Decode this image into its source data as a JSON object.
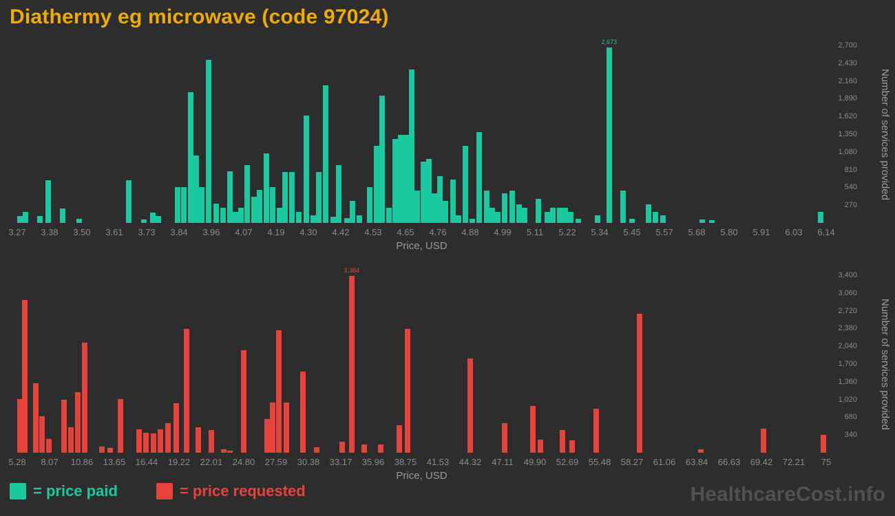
{
  "title": "Diathermy eg microwave (code 97024)",
  "watermark": "HealthcareCost.info",
  "legend": {
    "paid": "= price paid",
    "requested": "= price requested"
  },
  "colors": {
    "background": "#2D2D2D",
    "title": "#F0AB00",
    "paid": "#1BC9A0",
    "requested": "#E8423D",
    "tick_text": "#8B8B8B",
    "watermark": "#515151"
  },
  "chart_data": [
    {
      "type": "bar",
      "name": "price-paid",
      "series_label": "price paid",
      "color_key": "paid",
      "xlabel": "Price, USD",
      "ylabel": "Number of services provided",
      "x_range": [
        3.27,
        6.14
      ],
      "x_ticks": [
        "3.27",
        "3.38",
        "3.50",
        "3.61",
        "3.73",
        "3.84",
        "3.96",
        "4.07",
        "4.19",
        "4.30",
        "4.42",
        "4.53",
        "4.65",
        "4.76",
        "4.88",
        "4.99",
        "5.11",
        "5.22",
        "5.34",
        "5.45",
        "5.57",
        "5.68",
        "5.80",
        "5.91",
        "6.03",
        "6.14"
      ],
      "y_max": 2700,
      "y_ticks": [
        270,
        540,
        810,
        1080,
        1350,
        1620,
        1890,
        2160,
        2430,
        2700
      ],
      "peak_label": "2,673",
      "bars": [
        [
          3.275,
          110
        ],
        [
          3.3,
          165
        ],
        [
          3.35,
          110
        ],
        [
          3.38,
          650
        ],
        [
          3.43,
          215
        ],
        [
          3.49,
          65
        ],
        [
          3.665,
          650
        ],
        [
          3.72,
          55
        ],
        [
          3.75,
          160
        ],
        [
          3.77,
          110
        ],
        [
          3.84,
          540
        ],
        [
          3.86,
          540
        ],
        [
          3.885,
          1990
        ],
        [
          3.905,
          1030
        ],
        [
          3.925,
          540
        ],
        [
          3.95,
          2480
        ],
        [
          3.975,
          290
        ],
        [
          4.0,
          230
        ],
        [
          4.025,
          790
        ],
        [
          4.045,
          170
        ],
        [
          4.065,
          230
        ],
        [
          4.085,
          880
        ],
        [
          4.11,
          395
        ],
        [
          4.13,
          500
        ],
        [
          4.155,
          1060
        ],
        [
          4.175,
          540
        ],
        [
          4.2,
          230
        ],
        [
          4.22,
          770
        ],
        [
          4.245,
          770
        ],
        [
          4.27,
          170
        ],
        [
          4.295,
          1630
        ],
        [
          4.32,
          120
        ],
        [
          4.34,
          770
        ],
        [
          4.365,
          2090
        ],
        [
          4.39,
          90
        ],
        [
          4.41,
          880
        ],
        [
          4.44,
          70
        ],
        [
          4.46,
          330
        ],
        [
          4.485,
          120
        ],
        [
          4.52,
          540
        ],
        [
          4.545,
          1170
        ],
        [
          4.565,
          1940
        ],
        [
          4.59,
          230
        ],
        [
          4.61,
          1280
        ],
        [
          4.63,
          1340
        ],
        [
          4.65,
          1340
        ],
        [
          4.67,
          2330
        ],
        [
          4.69,
          490
        ],
        [
          4.71,
          930
        ],
        [
          4.73,
          970
        ],
        [
          4.75,
          445
        ],
        [
          4.77,
          715
        ],
        [
          4.79,
          330
        ],
        [
          4.815,
          655
        ],
        [
          4.835,
          120
        ],
        [
          4.86,
          1170
        ],
        [
          4.885,
          60
        ],
        [
          4.91,
          1380
        ],
        [
          4.935,
          490
        ],
        [
          4.955,
          230
        ],
        [
          4.975,
          170
        ],
        [
          5.0,
          445
        ],
        [
          5.025,
          490
        ],
        [
          5.05,
          285
        ],
        [
          5.07,
          230
        ],
        [
          5.12,
          365
        ],
        [
          5.15,
          170
        ],
        [
          5.17,
          230
        ],
        [
          5.195,
          230
        ],
        [
          5.215,
          230
        ],
        [
          5.235,
          170
        ],
        [
          5.26,
          60
        ],
        [
          5.33,
          120
        ],
        [
          5.37,
          2673
        ],
        [
          5.42,
          495
        ],
        [
          5.45,
          60
        ],
        [
          5.51,
          285
        ],
        [
          5.535,
          170
        ],
        [
          5.56,
          120
        ],
        [
          5.7,
          50
        ],
        [
          5.735,
          40
        ],
        [
          6.12,
          170
        ]
      ]
    },
    {
      "type": "bar",
      "name": "price-requested",
      "series_label": "price requested",
      "color_key": "requested",
      "xlabel": "Price, USD",
      "ylabel": "Number of services provided",
      "x_range": [
        5.28,
        75
      ],
      "x_ticks": [
        "5.28",
        "8.07",
        "10.86",
        "13.65",
        "16.44",
        "19.22",
        "22.01",
        "24.80",
        "27.59",
        "30.38",
        "33.17",
        "35.96",
        "38.75",
        "41.53",
        "44.32",
        "47.11",
        "49.90",
        "52.69",
        "55.48",
        "58.27",
        "61.06",
        "63.84",
        "66.63",
        "69.42",
        "72.21",
        "75"
      ],
      "y_max": 3400,
      "y_ticks": [
        340,
        680,
        1020,
        1360,
        1700,
        2040,
        2380,
        2720,
        3060,
        3400
      ],
      "peak_label": "3,384",
      "bars": [
        [
          5.4,
          1030
        ],
        [
          5.95,
          2920
        ],
        [
          6.9,
          1330
        ],
        [
          7.4,
          705
        ],
        [
          8.0,
          265
        ],
        [
          9.3,
          1010
        ],
        [
          9.9,
          485
        ],
        [
          10.5,
          1160
        ],
        [
          11.1,
          2110
        ],
        [
          12.6,
          125
        ],
        [
          13.3,
          90
        ],
        [
          14.2,
          1030
        ],
        [
          15.8,
          445
        ],
        [
          16.4,
          385
        ],
        [
          17.0,
          365
        ],
        [
          17.6,
          445
        ],
        [
          18.3,
          565
        ],
        [
          19.0,
          955
        ],
        [
          19.9,
          2370
        ],
        [
          20.9,
          485
        ],
        [
          22.0,
          430
        ],
        [
          23.1,
          60
        ],
        [
          23.6,
          35
        ],
        [
          24.8,
          1960
        ],
        [
          26.8,
          645
        ],
        [
          27.3,
          960
        ],
        [
          27.8,
          2340
        ],
        [
          28.5,
          965
        ],
        [
          29.9,
          1560
        ],
        [
          31.1,
          105
        ],
        [
          33.3,
          210
        ],
        [
          34.1,
          3384
        ],
        [
          35.2,
          160
        ],
        [
          36.6,
          155
        ],
        [
          38.2,
          525
        ],
        [
          38.9,
          2370
        ],
        [
          44.3,
          1810
        ],
        [
          47.3,
          565
        ],
        [
          49.7,
          890
        ],
        [
          50.4,
          255
        ],
        [
          52.3,
          430
        ],
        [
          53.1,
          235
        ],
        [
          55.2,
          840
        ],
        [
          58.9,
          2660
        ],
        [
          64.2,
          70
        ],
        [
          69.6,
          460
        ],
        [
          74.8,
          340
        ]
      ]
    }
  ]
}
